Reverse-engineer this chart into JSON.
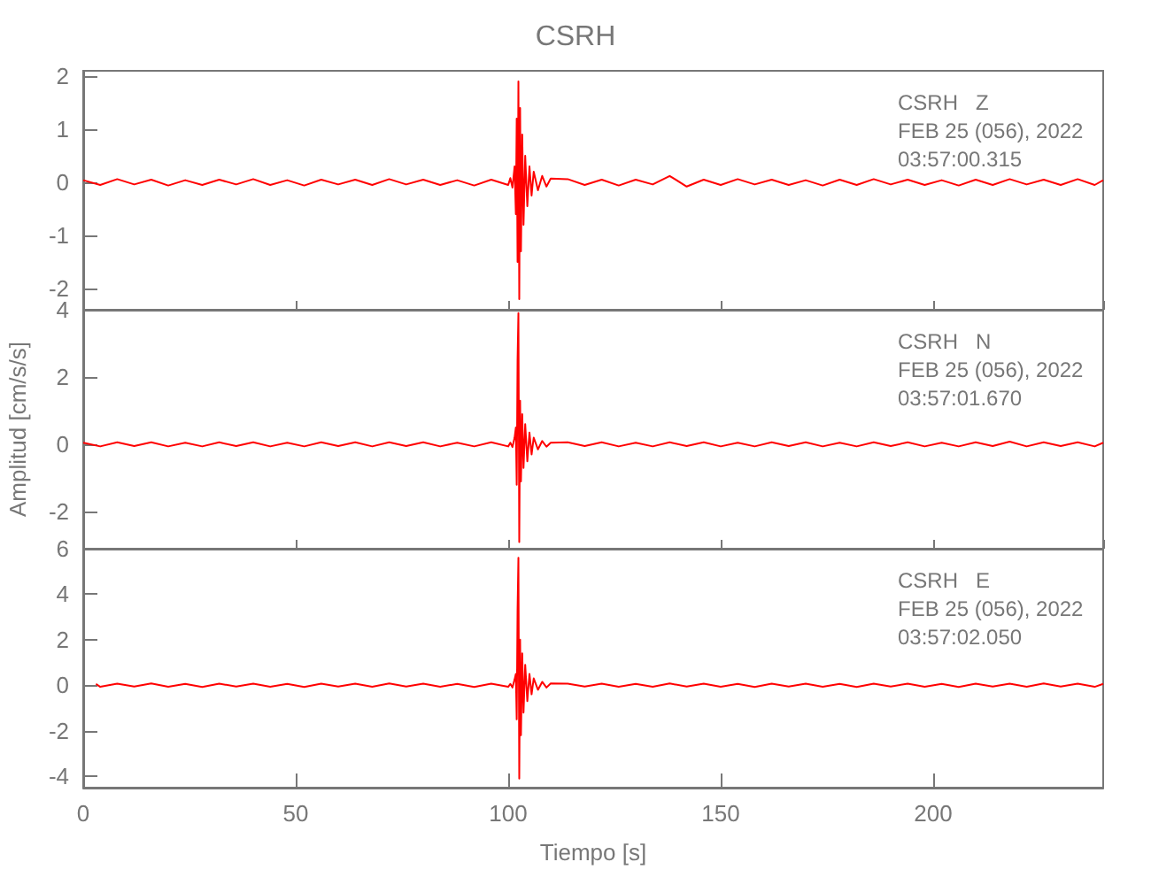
{
  "chart_data": [
    {
      "type": "line",
      "title": "CSRH",
      "annotations": [
        "CSRH   Z",
        "FEB 25 (056), 2022",
        "03:57:00.315"
      ],
      "xlim": [
        0,
        240
      ],
      "ylim": [
        -2.4,
        2.1
      ],
      "yticks": [
        -2,
        -1,
        0,
        1,
        2
      ],
      "tick_labels": "y",
      "grid": false,
      "x": [
        0,
        4,
        8,
        12,
        16,
        20,
        24,
        28,
        32,
        36,
        40,
        44,
        48,
        52,
        56,
        60,
        64,
        68,
        72,
        76,
        80,
        84,
        88,
        92,
        96,
        100,
        100.5,
        101,
        101.5,
        101.8,
        102,
        102.2,
        102.4,
        102.6,
        102.8,
        103,
        103.3,
        103.6,
        104,
        104.5,
        105,
        105.5,
        106,
        107,
        108,
        109,
        110,
        114,
        118,
        122,
        126,
        130,
        134,
        138,
        142,
        146,
        150,
        154,
        158,
        162,
        166,
        170,
        174,
        178,
        182,
        186,
        190,
        194,
        198,
        202,
        206,
        210,
        214,
        218,
        222,
        226,
        230,
        234,
        238,
        240
      ],
      "series": [
        {
          "color": "#ff0000",
          "values": [
            0.04,
            -0.05,
            0.06,
            -0.04,
            0.05,
            -0.06,
            0.04,
            -0.05,
            0.05,
            -0.04,
            0.06,
            -0.05,
            0.04,
            -0.06,
            0.05,
            -0.04,
            0.05,
            -0.05,
            0.06,
            -0.04,
            0.05,
            -0.05,
            0.04,
            -0.06,
            0.05,
            -0.05,
            0.08,
            -0.1,
            0.3,
            -0.6,
            1.2,
            -1.5,
            1.9,
            -2.2,
            1.4,
            -1.3,
            0.9,
            -0.8,
            0.5,
            -0.45,
            0.3,
            -0.25,
            0.2,
            -0.15,
            0.12,
            -0.08,
            0.07,
            0.06,
            -0.05,
            0.05,
            -0.06,
            0.05,
            -0.04,
            0.12,
            -0.08,
            0.05,
            -0.05,
            0.06,
            -0.04,
            0.05,
            -0.05,
            0.04,
            -0.06,
            0.05,
            -0.05,
            0.06,
            -0.04,
            0.05,
            -0.05,
            0.04,
            -0.06,
            0.05,
            -0.05,
            0.06,
            -0.04,
            0.05,
            -0.05,
            0.06,
            -0.05,
            0.04
          ]
        }
      ]
    },
    {
      "type": "line",
      "ylabel": "Amplitud [cm/s/s]",
      "annotations": [
        "CSRH   N",
        "FEB 25 (056), 2022",
        "03:57:01.670"
      ],
      "xlim": [
        0,
        240
      ],
      "ylim": [
        -3.1,
        4
      ],
      "yticks": [
        -2,
        0,
        2,
        4
      ],
      "tick_labels": "y",
      "grid": false,
      "x": [
        0,
        4,
        8,
        12,
        16,
        20,
        24,
        28,
        32,
        36,
        40,
        44,
        48,
        52,
        56,
        60,
        64,
        68,
        72,
        76,
        80,
        84,
        88,
        92,
        96,
        100,
        100.5,
        101,
        101.5,
        101.8,
        102,
        102.2,
        102.4,
        102.6,
        102.8,
        103,
        103.3,
        103.6,
        104,
        104.5,
        105,
        105.5,
        106,
        107,
        108,
        109,
        110,
        114,
        118,
        122,
        126,
        130,
        134,
        138,
        142,
        146,
        150,
        154,
        158,
        162,
        166,
        170,
        174,
        178,
        182,
        186,
        190,
        194,
        198,
        202,
        206,
        210,
        214,
        218,
        222,
        226,
        230,
        234,
        238,
        240
      ],
      "series": [
        {
          "color": "#ff0000",
          "values": [
            0.05,
            -0.06,
            0.06,
            -0.05,
            0.06,
            -0.06,
            0.05,
            -0.06,
            0.06,
            -0.05,
            0.06,
            -0.06,
            0.05,
            -0.06,
            0.06,
            -0.05,
            0.06,
            -0.06,
            0.06,
            -0.05,
            0.06,
            -0.06,
            0.05,
            -0.06,
            0.06,
            -0.06,
            0.05,
            -0.08,
            0.2,
            0.5,
            -1.2,
            2.5,
            3.9,
            -2.9,
            1.3,
            -1.1,
            0.9,
            -0.7,
            0.6,
            -0.5,
            0.35,
            -0.3,
            0.2,
            -0.15,
            0.1,
            -0.07,
            0.05,
            0.06,
            -0.05,
            0.06,
            -0.06,
            0.05,
            -0.06,
            0.06,
            -0.05,
            0.06,
            -0.06,
            0.05,
            -0.06,
            0.06,
            -0.05,
            0.06,
            -0.06,
            0.05,
            -0.06,
            0.06,
            -0.05,
            0.06,
            -0.06,
            0.05,
            -0.06,
            0.06,
            -0.05,
            0.08,
            -0.06,
            0.06,
            -0.05,
            0.06,
            -0.06,
            0.05
          ]
        }
      ]
    },
    {
      "type": "line",
      "xlabel": "Tiempo [s]",
      "annotations": [
        "CSRH   E",
        "FEB 25 (056), 2022",
        "03:57:02.050"
      ],
      "xlim": [
        0,
        240
      ],
      "xticks": [
        0,
        50,
        100,
        150,
        200
      ],
      "ylim": [
        -4.5,
        6
      ],
      "yticks": [
        -4,
        -2,
        0,
        2,
        4,
        6
      ],
      "grid": false,
      "x": [
        3,
        4,
        8,
        12,
        16,
        20,
        24,
        28,
        32,
        36,
        40,
        44,
        48,
        52,
        56,
        60,
        64,
        68,
        72,
        76,
        80,
        84,
        88,
        92,
        96,
        100,
        100.5,
        101,
        101.5,
        101.8,
        102,
        102.2,
        102.4,
        102.6,
        102.8,
        103,
        103.3,
        103.6,
        104,
        104.5,
        105,
        105.5,
        106,
        107,
        108,
        109,
        110,
        114,
        118,
        122,
        126,
        130,
        134,
        138,
        142,
        146,
        150,
        154,
        158,
        162,
        166,
        170,
        174,
        178,
        182,
        186,
        190,
        194,
        198,
        202,
        206,
        210,
        214,
        218,
        222,
        226,
        230,
        234,
        238,
        240
      ],
      "series": [
        {
          "color": "#ff0000",
          "values": [
            0.06,
            -0.07,
            0.07,
            -0.06,
            0.08,
            -0.07,
            0.06,
            -0.08,
            0.07,
            -0.06,
            0.07,
            -0.07,
            0.06,
            -0.08,
            0.07,
            -0.06,
            0.07,
            -0.07,
            0.08,
            -0.06,
            0.07,
            -0.07,
            0.06,
            -0.08,
            0.07,
            -0.07,
            0.06,
            -0.1,
            0.25,
            0.5,
            -1.5,
            3.3,
            5.6,
            -4.1,
            2,
            -2.2,
            1.4,
            -1.2,
            0.9,
            -0.7,
            0.5,
            -0.4,
            0.3,
            -0.2,
            0.15,
            -0.1,
            0.08,
            0.07,
            -0.06,
            0.07,
            -0.07,
            0.06,
            -0.07,
            0.08,
            -0.06,
            0.07,
            -0.07,
            0.06,
            -0.08,
            0.07,
            -0.06,
            0.07,
            -0.07,
            0.06,
            -0.08,
            0.07,
            -0.06,
            0.07,
            -0.07,
            0.06,
            -0.08,
            0.07,
            -0.06,
            0.07,
            -0.07,
            0.08,
            -0.06,
            0.07,
            -0.07,
            0.06
          ]
        }
      ]
    }
  ]
}
